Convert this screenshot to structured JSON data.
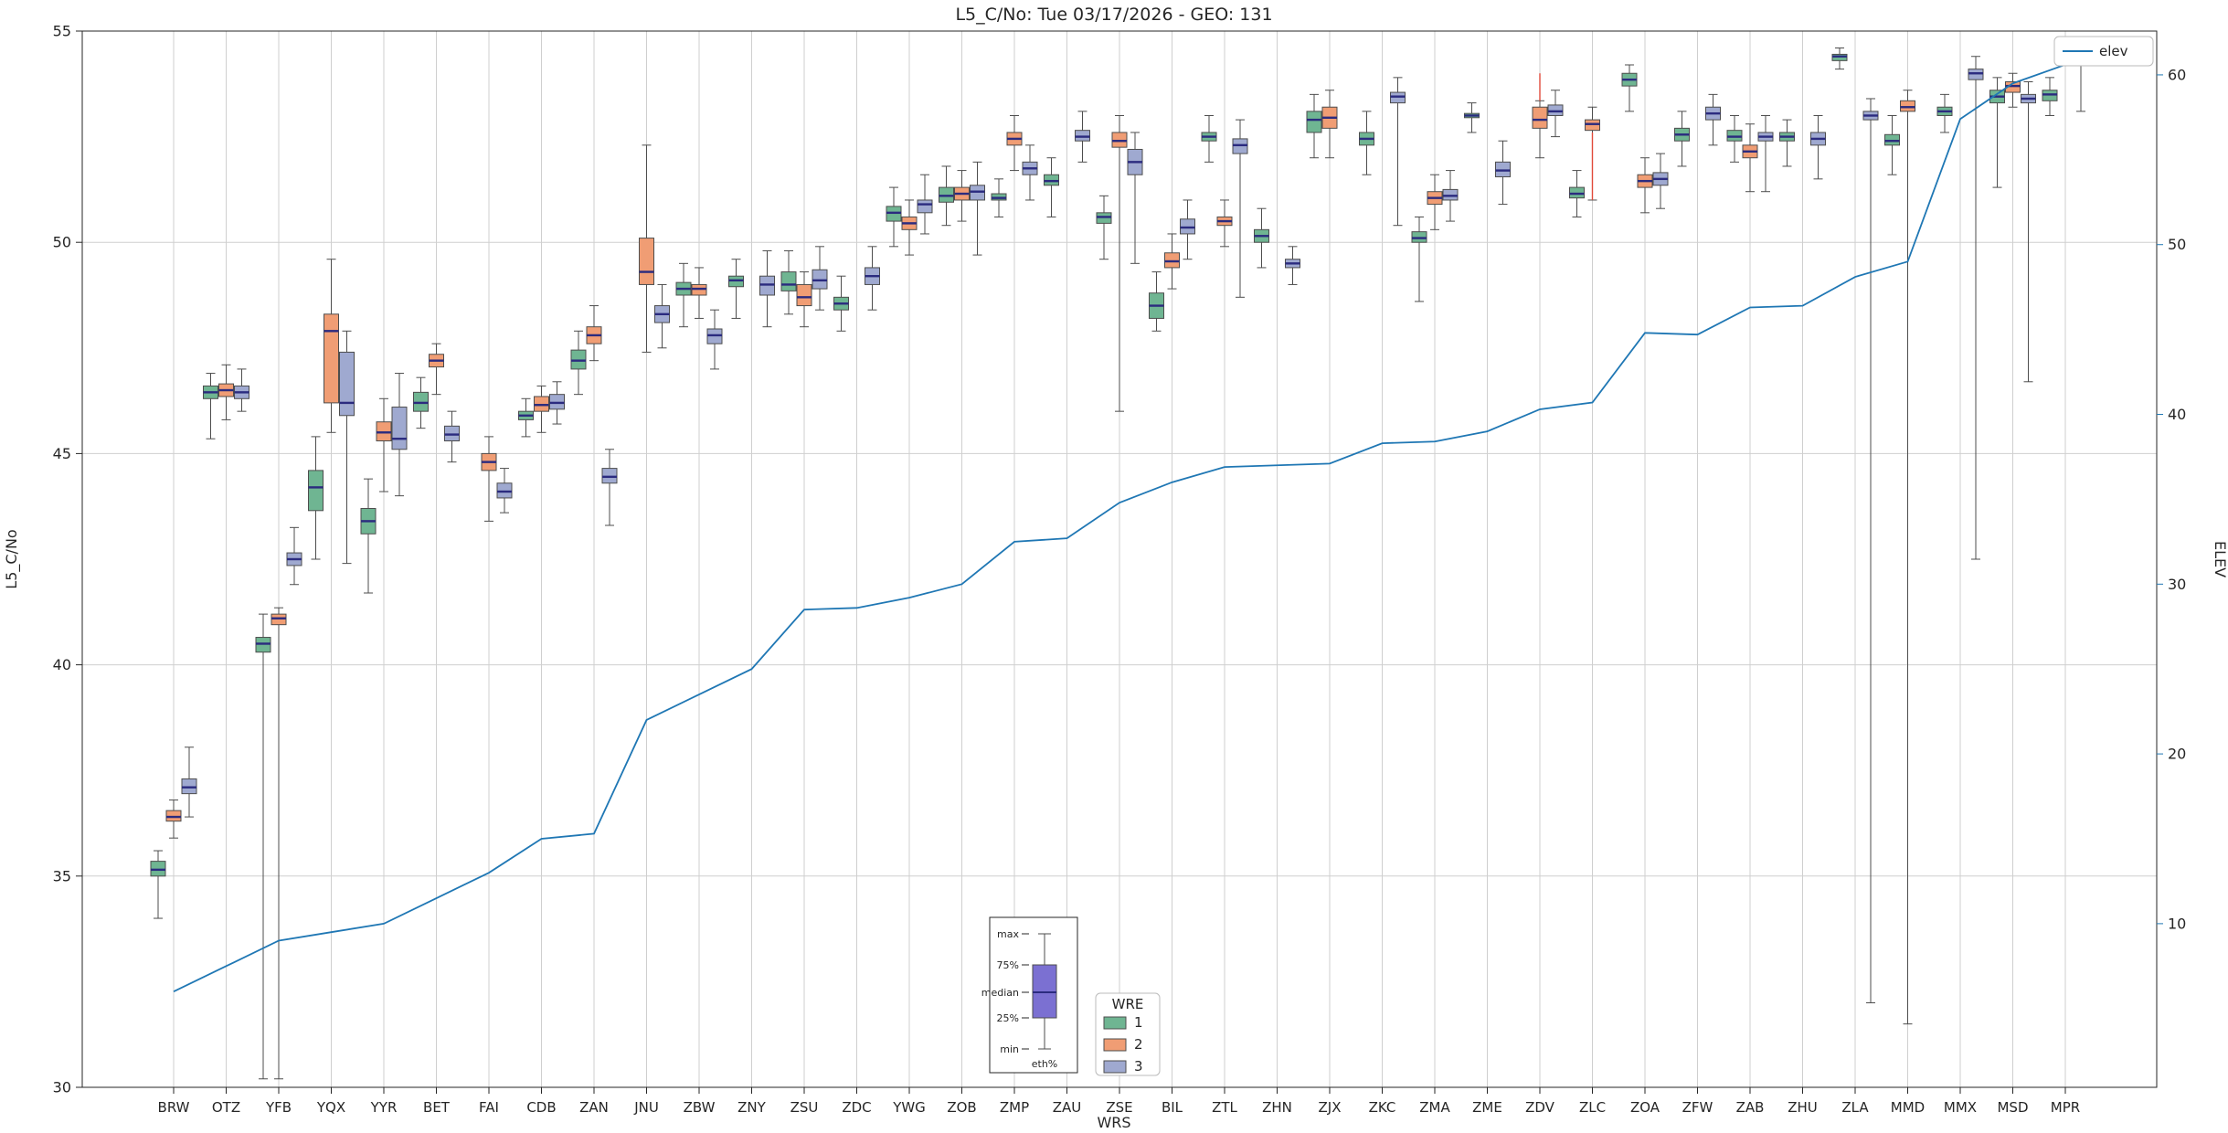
{
  "title": "L5_C/No: Tue 03/17/2026 - GEO: 131",
  "axes": {
    "ylabel_left": "L5_C/No",
    "ylabel_right": "ELEV",
    "xlabel": "WRS",
    "yleft_ticks": [
      30,
      35,
      40,
      45,
      50,
      55
    ],
    "yleft_range": [
      30,
      55
    ],
    "yright_ticks": [
      10,
      20,
      30,
      40,
      50,
      60
    ],
    "yright_range": [
      0.36,
      62.58
    ]
  },
  "legend_elev": {
    "label": "elev"
  },
  "legend_wre": {
    "title": "WRE",
    "items": [
      {
        "label": "1",
        "color": "#6fb592"
      },
      {
        "label": "2",
        "color": "#f09d74"
      },
      {
        "label": "3",
        "color": "#9fa9d0"
      }
    ]
  },
  "inset": {
    "labels": [
      "max",
      "75%",
      "median",
      "25%",
      "min"
    ],
    "xlabel": "eth%",
    "box_color": "#7b70d2"
  },
  "chart_data": {
    "type": "boxplot+line",
    "title": "L5_C/No: Tue 03/17/2026 - GEO: 131",
    "xlabel": "WRS",
    "ylabel_left": "L5_C/No",
    "ylabel_right": "ELEV",
    "grid": true,
    "series_names": [
      "1",
      "2",
      "3"
    ],
    "colors": {
      "1": "#6fb592",
      "2": "#f09d74",
      "3": "#9fa9d0"
    },
    "median_color": "#2b2b7f",
    "whisker_color": "#4d4d4d",
    "line_series": {
      "name": "elev",
      "color": "#1f77b4"
    },
    "box_stats_order": [
      "whisker_low",
      "q1",
      "median",
      "q3",
      "whisker_high"
    ],
    "stations": [
      {
        "name": "BRW",
        "elev": 6.0,
        "boxes": {
          "1": [
            34.0,
            35.0,
            35.15,
            35.35,
            35.6
          ],
          "2": [
            35.9,
            36.3,
            36.4,
            36.55,
            36.8
          ],
          "3": [
            36.4,
            36.95,
            37.1,
            37.3,
            38.05
          ]
        }
      },
      {
        "name": "OTZ",
        "elev": 7.5,
        "boxes": {
          "1": [
            45.35,
            46.3,
            46.45,
            46.6,
            46.9
          ],
          "2": [
            45.8,
            46.35,
            46.5,
            46.65,
            47.1
          ],
          "3": [
            46.0,
            46.3,
            46.45,
            46.6,
            47.0
          ]
        }
      },
      {
        "name": "YFB",
        "elev": 9.0,
        "boxes": {
          "1": [
            30.2,
            40.3,
            40.5,
            40.65,
            41.2
          ],
          "2": [
            30.2,
            40.95,
            41.1,
            41.2,
            41.35
          ],
          "3": [
            41.9,
            42.35,
            42.5,
            42.65,
            43.25
          ]
        }
      },
      {
        "name": "YQX",
        "elev": 9.5,
        "boxes": {
          "1": [
            42.5,
            43.65,
            44.2,
            44.6,
            45.4
          ],
          "2": [
            45.5,
            46.2,
            47.9,
            48.3,
            49.6
          ],
          "3": [
            42.4,
            45.9,
            46.2,
            47.4,
            47.9
          ]
        }
      },
      {
        "name": "YYR",
        "elev": 10.0,
        "boxes": {
          "1": [
            41.7,
            43.1,
            43.4,
            43.7,
            44.4
          ],
          "2": [
            44.1,
            45.3,
            45.5,
            45.75,
            46.3
          ],
          "3": [
            44.0,
            45.1,
            45.35,
            46.1,
            46.9
          ]
        }
      },
      {
        "name": "BET",
        "elev": 11.5,
        "boxes": {
          "1": [
            45.6,
            46.0,
            46.2,
            46.45,
            46.8
          ],
          "2": [
            46.4,
            47.05,
            47.2,
            47.35,
            47.6
          ],
          "3": [
            44.8,
            45.3,
            45.45,
            45.65,
            46.0
          ]
        }
      },
      {
        "name": "FAI",
        "elev": 13.0,
        "boxes": {
          "2": [
            43.4,
            44.6,
            44.8,
            45.0,
            45.4
          ],
          "3": [
            43.6,
            43.95,
            44.1,
            44.3,
            44.65
          ]
        }
      },
      {
        "name": "CDB",
        "elev": 15.0,
        "boxes": {
          "1": [
            45.4,
            45.8,
            45.9,
            46.0,
            46.3
          ],
          "2": [
            45.5,
            46.0,
            46.15,
            46.35,
            46.6
          ],
          "3": [
            45.7,
            46.05,
            46.2,
            46.4,
            46.7
          ]
        }
      },
      {
        "name": "ZAN",
        "elev": 15.3,
        "boxes": {
          "1": [
            46.4,
            47.0,
            47.2,
            47.45,
            47.9
          ],
          "2": [
            47.2,
            47.6,
            47.8,
            48.0,
            48.5
          ],
          "3": [
            43.3,
            44.3,
            44.45,
            44.65,
            45.1
          ]
        }
      },
      {
        "name": "JNU",
        "elev": 22.0,
        "boxes": {
          "2": [
            47.4,
            49.0,
            49.3,
            50.1,
            52.3
          ],
          "3": [
            47.5,
            48.1,
            48.3,
            48.5,
            49.0
          ]
        }
      },
      {
        "name": "ZBW",
        "elev": 23.5,
        "boxes": {
          "1": [
            48.0,
            48.75,
            48.9,
            49.05,
            49.5
          ],
          "2": [
            48.2,
            48.75,
            48.9,
            49.0,
            49.4
          ],
          "3": [
            47.0,
            47.6,
            47.8,
            47.95,
            48.4
          ]
        }
      },
      {
        "name": "ZNY",
        "elev": 25.0,
        "boxes": {
          "1": [
            48.2,
            48.95,
            49.1,
            49.2,
            49.6
          ],
          "3": [
            48.0,
            48.75,
            49.0,
            49.2,
            49.8
          ]
        }
      },
      {
        "name": "ZSU",
        "elev": 28.5,
        "boxes": {
          "1": [
            48.3,
            48.85,
            49.0,
            49.3,
            49.8
          ],
          "2": [
            48.0,
            48.5,
            48.7,
            49.0,
            49.3
          ],
          "3": [
            48.4,
            48.9,
            49.1,
            49.35,
            49.9
          ]
        }
      },
      {
        "name": "ZDC",
        "elev": 28.6,
        "boxes": {
          "1": [
            47.9,
            48.4,
            48.55,
            48.7,
            49.2
          ],
          "3": [
            48.4,
            49.0,
            49.2,
            49.4,
            49.9
          ]
        }
      },
      {
        "name": "YWG",
        "elev": 29.2,
        "boxes": {
          "1": [
            49.9,
            50.5,
            50.7,
            50.85,
            51.3
          ],
          "2": [
            49.7,
            50.3,
            50.45,
            50.6,
            51.0
          ],
          "3": [
            50.2,
            50.7,
            50.9,
            51.0,
            51.6
          ]
        }
      },
      {
        "name": "ZOB",
        "elev": 30.0,
        "boxes": {
          "1": [
            50.4,
            50.95,
            51.1,
            51.3,
            51.8
          ],
          "2": [
            50.5,
            51.0,
            51.15,
            51.3,
            51.7
          ],
          "3": [
            49.7,
            51.0,
            51.2,
            51.35,
            51.9
          ]
        }
      },
      {
        "name": "ZMP",
        "elev": 32.5,
        "boxes": {
          "1": [
            50.6,
            51.0,
            51.05,
            51.15,
            51.5
          ],
          "2": [
            51.7,
            52.3,
            52.45,
            52.6,
            53.0
          ],
          "3": [
            51.0,
            51.6,
            51.75,
            51.9,
            52.3
          ]
        }
      },
      {
        "name": "ZAU",
        "elev": 32.7,
        "boxes": {
          "1": [
            50.6,
            51.35,
            51.45,
            51.6,
            52.0
          ],
          "3": [
            51.9,
            52.4,
            52.5,
            52.65,
            53.1
          ]
        }
      },
      {
        "name": "ZSE",
        "elev": 34.8,
        "boxes": {
          "1": [
            49.6,
            50.45,
            50.6,
            50.7,
            51.1
          ],
          "2": [
            46.0,
            52.25,
            52.4,
            52.6,
            53.0
          ],
          "3": [
            49.5,
            51.6,
            51.9,
            52.2,
            52.6
          ]
        }
      },
      {
        "name": "BIL",
        "elev": 36.0,
        "boxes": {
          "1": [
            47.9,
            48.2,
            48.5,
            48.8,
            49.3
          ],
          "2": [
            48.9,
            49.4,
            49.55,
            49.75,
            50.2
          ],
          "3": [
            49.6,
            50.2,
            50.35,
            50.55,
            51.0
          ]
        }
      },
      {
        "name": "ZTL",
        "elev": 36.9,
        "boxes": {
          "1": [
            51.9,
            52.4,
            52.5,
            52.6,
            53.0
          ],
          "2": [
            49.9,
            50.4,
            50.5,
            50.6,
            51.0
          ],
          "3": [
            48.7,
            52.1,
            52.3,
            52.45,
            52.9
          ]
        }
      },
      {
        "name": "ZHN",
        "elev": 37.0,
        "boxes": {
          "1": [
            49.4,
            50.0,
            50.15,
            50.3,
            50.8
          ],
          "3": [
            49.0,
            49.4,
            49.5,
            49.6,
            49.9
          ]
        }
      },
      {
        "name": "ZJX",
        "elev": 37.1,
        "boxes": {
          "1": [
            52.0,
            52.6,
            52.9,
            53.1,
            53.5
          ],
          "2": [
            52.0,
            52.7,
            52.95,
            53.2,
            53.6
          ]
        }
      },
      {
        "name": "ZKC",
        "elev": 38.3,
        "boxes": {
          "1": [
            51.6,
            52.3,
            52.45,
            52.6,
            53.1
          ],
          "3": [
            50.4,
            53.3,
            53.45,
            53.55,
            53.9
          ]
        }
      },
      {
        "name": "ZMA",
        "elev": 38.4,
        "boxes": {
          "1": [
            48.6,
            50.0,
            50.1,
            50.25,
            50.6
          ],
          "2": [
            50.3,
            50.9,
            51.05,
            51.2,
            51.6
          ],
          "3": [
            50.5,
            51.0,
            51.1,
            51.25,
            51.7
          ]
        }
      },
      {
        "name": "ZME",
        "elev": 39.0,
        "boxes": {
          "1": [
            52.6,
            52.95,
            53.0,
            53.05,
            53.3
          ],
          "3": [
            50.9,
            51.55,
            51.7,
            51.9,
            52.4
          ]
        }
      },
      {
        "name": "ZDV",
        "elev": 40.3,
        "boxes": {
          "2": [
            52.0,
            52.7,
            52.9,
            53.2,
            53.35
          ],
          "3": [
            52.5,
            53.0,
            53.1,
            53.25,
            53.6
          ]
        }
      },
      {
        "name": "ZLC",
        "elev": 40.7,
        "boxes": {
          "1": [
            50.6,
            51.05,
            51.15,
            51.3,
            51.7
          ],
          "2": [
            51.0,
            52.65,
            52.8,
            52.9,
            53.2
          ]
        }
      },
      {
        "name": "ZOA",
        "elev": 44.8,
        "boxes": {
          "1": [
            53.1,
            53.7,
            53.85,
            54.0,
            54.2
          ],
          "2": [
            50.7,
            51.3,
            51.45,
            51.6,
            52.0
          ],
          "3": [
            50.8,
            51.35,
            51.5,
            51.65,
            52.1
          ]
        }
      },
      {
        "name": "ZFW",
        "elev": 44.7,
        "boxes": {
          "1": [
            51.8,
            52.4,
            52.55,
            52.7,
            53.1
          ],
          "3": [
            52.3,
            52.9,
            53.05,
            53.2,
            53.5
          ]
        }
      },
      {
        "name": "ZAB",
        "elev": 46.3,
        "boxes": {
          "1": [
            51.9,
            52.4,
            52.5,
            52.65,
            53.0
          ],
          "2": [
            51.2,
            52.0,
            52.15,
            52.3,
            52.8
          ],
          "3": [
            51.2,
            52.4,
            52.5,
            52.6,
            53.0
          ]
        }
      },
      {
        "name": "ZHU",
        "elev": 46.4,
        "boxes": {
          "1": [
            51.8,
            52.4,
            52.5,
            52.6,
            52.9
          ],
          "3": [
            51.5,
            52.3,
            52.45,
            52.6,
            53.0
          ]
        }
      },
      {
        "name": "ZLA",
        "elev": 48.1,
        "boxes": {
          "1": [
            54.1,
            54.3,
            54.4,
            54.45,
            54.6
          ],
          "3": [
            32.0,
            52.9,
            53.0,
            53.1,
            53.4
          ]
        }
      },
      {
        "name": "MMD",
        "elev": 49.0,
        "boxes": {
          "1": [
            51.6,
            52.3,
            52.4,
            52.55,
            53.0
          ],
          "2": [
            31.5,
            53.1,
            53.2,
            53.35,
            53.6
          ]
        }
      },
      {
        "name": "MMX",
        "elev": 57.4,
        "boxes": {
          "1": [
            52.6,
            53.0,
            53.1,
            53.2,
            53.5
          ],
          "3": [
            42.5,
            53.85,
            54.0,
            54.1,
            54.4
          ]
        }
      },
      {
        "name": "MSD",
        "elev": 59.5,
        "boxes": {
          "1": [
            51.3,
            53.3,
            53.45,
            53.6,
            53.9
          ],
          "2": [
            53.2,
            53.55,
            53.7,
            53.8,
            54.0
          ],
          "3": [
            46.7,
            53.3,
            53.4,
            53.5,
            53.8
          ]
        }
      },
      {
        "name": "MPR",
        "elev": 60.6,
        "boxes": {
          "1": [
            53.0,
            53.35,
            53.5,
            53.6,
            53.9
          ],
          "3": [
            53.1,
            54.3,
            54.45,
            54.6,
            54.75
          ]
        }
      }
    ],
    "red_segments": [
      {
        "station": "ZDV",
        "series": "2",
        "from": 53.35,
        "to": 54.0,
        "color": "#e04b3a"
      },
      {
        "station": "ZLC",
        "series": "2",
        "from": 51.0,
        "to": 52.6,
        "color": "#e04b3a"
      }
    ]
  }
}
